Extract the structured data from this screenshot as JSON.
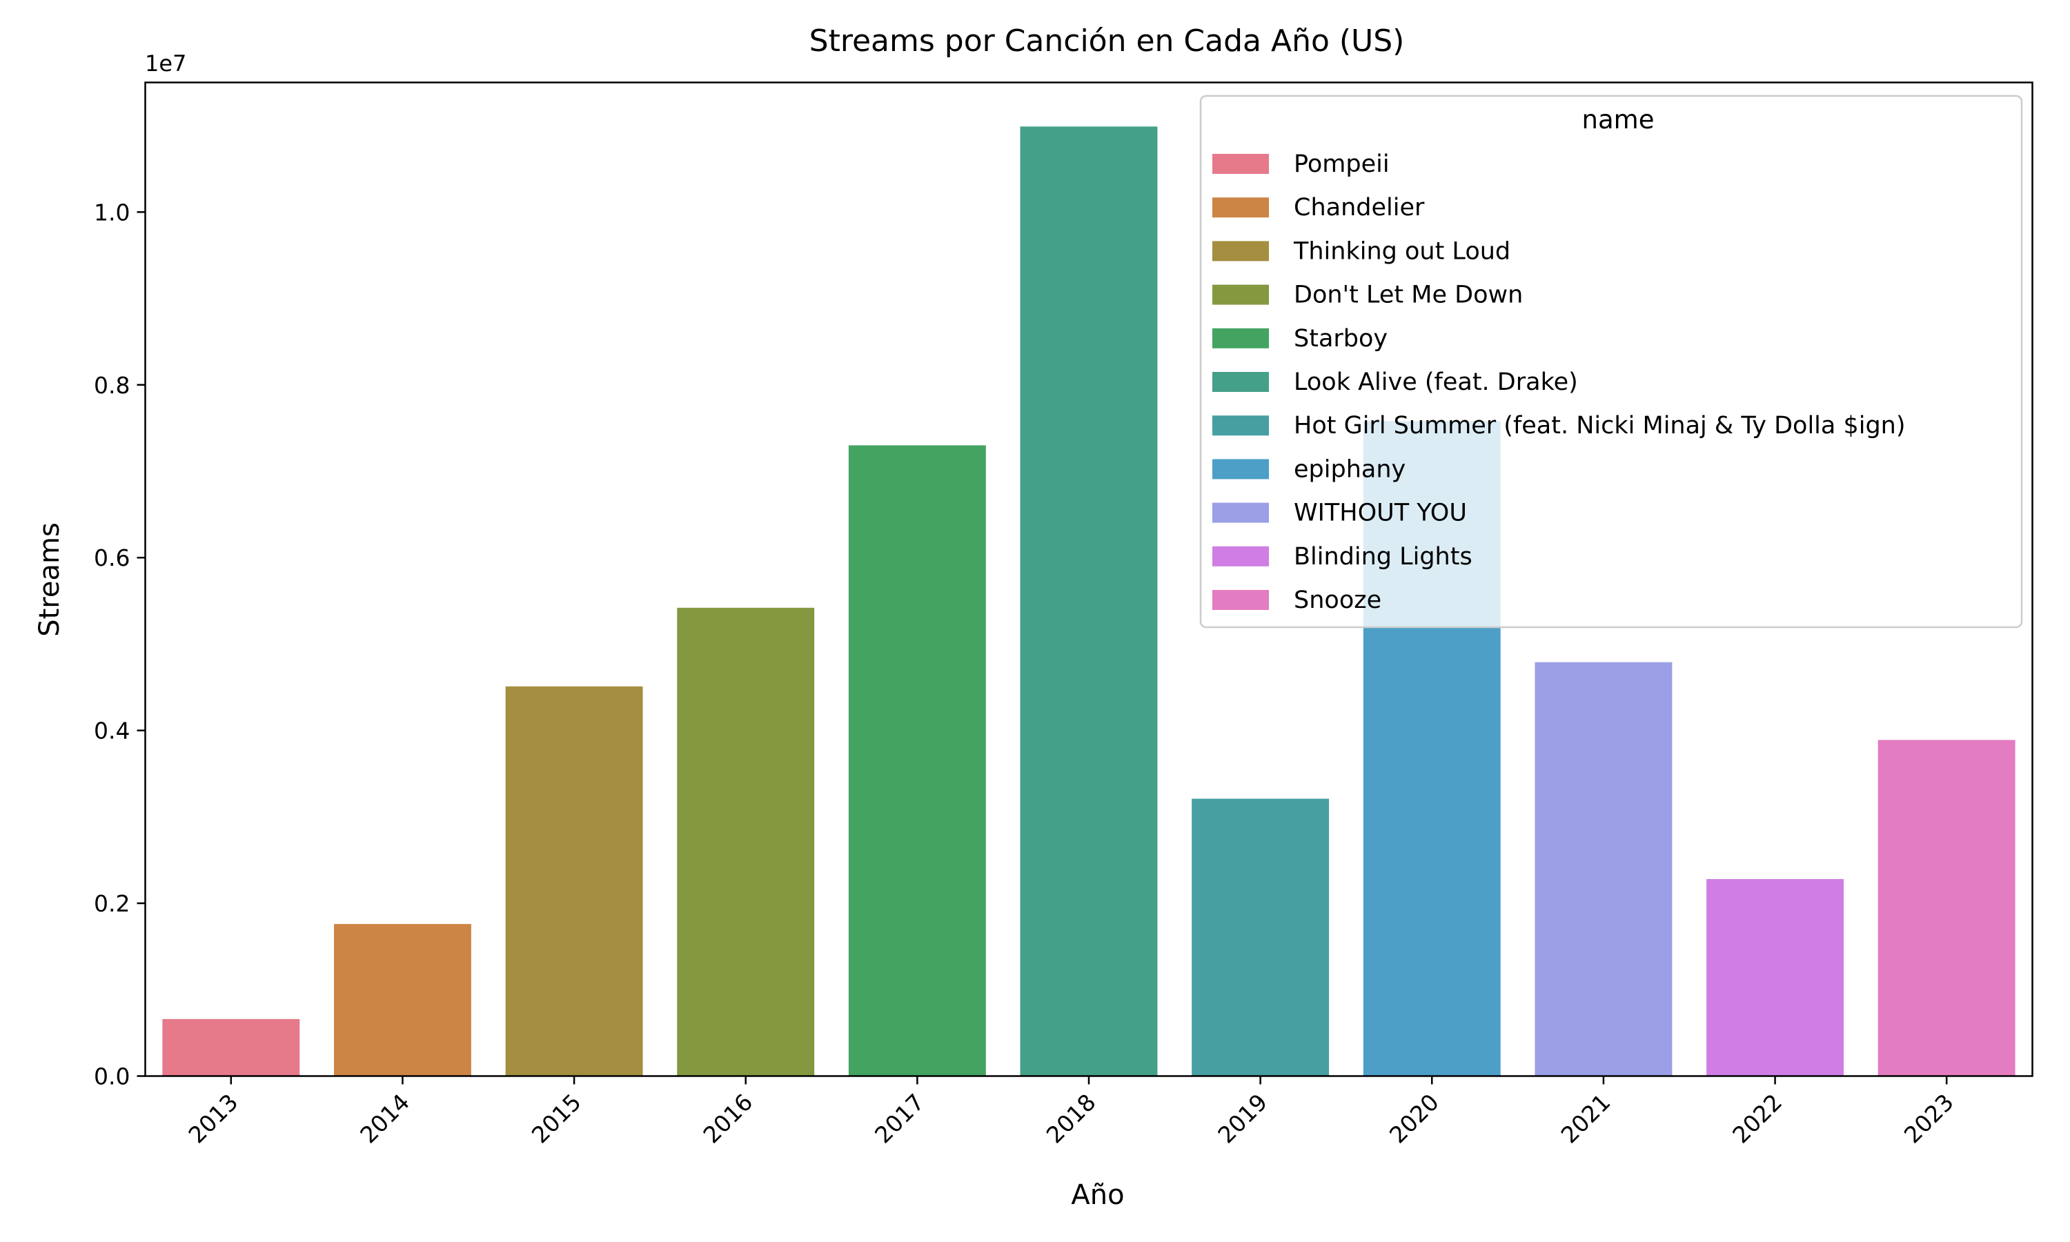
{
  "chart_data": {
    "type": "bar",
    "title": "Streams por Canción en Cada Año (US)",
    "xlabel": "Año",
    "ylabel": "Streams",
    "y_offset_label": "1e7",
    "categories": [
      "2013",
      "2014",
      "2015",
      "2016",
      "2017",
      "2018",
      "2019",
      "2020",
      "2021",
      "2022",
      "2023"
    ],
    "values": [
      660000,
      1760000,
      4510000,
      5420000,
      7300000,
      10990000,
      3210000,
      7580000,
      4790000,
      2280000,
      3890000
    ],
    "series_names": [
      "Pompeii",
      "Chandelier",
      "Thinking out Loud",
      "Don't Let Me Down",
      "Starboy",
      "Look Alive (feat. Drake)",
      "Hot Girl Summer (feat. Nicki Minaj & Ty Dolla $ign)",
      "epiphany",
      "WITHOUT YOU",
      "Blinding Lights",
      "Snooze"
    ],
    "colors": [
      "#e6798a",
      "#cc8545",
      "#a48f40",
      "#849840",
      "#43a361",
      "#45a08a",
      "#479fa2",
      "#4d9fc8",
      "#9b9fe6",
      "#d07ee3",
      "#e37cc0"
    ],
    "ylim": [
      0,
      11500000
    ],
    "yticks": [
      0,
      2000000,
      4000000,
      6000000,
      8000000,
      10000000
    ],
    "ytick_labels": [
      "0.0",
      "0.2",
      "0.4",
      "0.6",
      "0.8",
      "1.0"
    ],
    "grid": false,
    "legend": {
      "title": "name",
      "placement": "top-right"
    }
  }
}
